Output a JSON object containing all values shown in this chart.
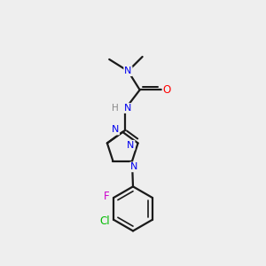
{
  "background_color": "#eeeeee",
  "bond_color": "#1a1a1a",
  "atom_colors": {
    "N": "#0000ee",
    "O": "#ff0000",
    "F": "#cc00cc",
    "Cl": "#00bb00",
    "C": "#1a1a1a",
    "H": "#888888"
  },
  "figsize": [
    3.0,
    3.0
  ],
  "dpi": 100
}
